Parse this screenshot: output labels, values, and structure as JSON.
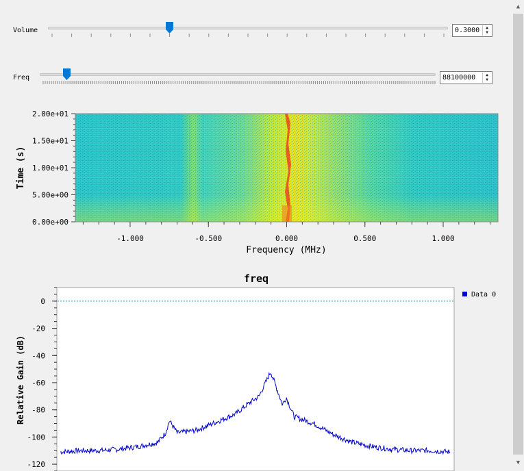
{
  "controls": {
    "volume": {
      "label": "Volume",
      "value_text": "0.3000",
      "position": 0.3
    },
    "freq": {
      "label": "Freq",
      "value_text": "88100000",
      "position": 0.06
    }
  },
  "waterfall": {
    "ylabel": "Time (s)",
    "xlabel": "Frequency (MHz)",
    "yticks": [
      "2.00e+01",
      "1.50e+01",
      "1.00e+01",
      "5.00e+00",
      "0.00e+00"
    ],
    "xticks": [
      "-1.000",
      "-0.500",
      "0.000",
      "0.500",
      "1.000"
    ]
  },
  "spectrum": {
    "title": "freq",
    "legend": "Data 0",
    "ylabel": "Relative Gain (dB)",
    "yticks": [
      "0",
      "-20",
      "-40",
      "-60",
      "-80",
      "-100",
      "-120"
    ]
  },
  "colors": {
    "curve": "#0000c8",
    "reference_line": "#00aaaa",
    "handle": "#0078d7"
  },
  "chart_data": [
    {
      "type": "heatmap",
      "title": "",
      "xlabel": "Frequency (MHz)",
      "ylabel": "Time (s)",
      "xlim": [
        -1.35,
        1.35
      ],
      "ylim": [
        0,
        20
      ],
      "description_free": true
    },
    {
      "type": "line",
      "title": "freq",
      "ylabel": "Relative Gain (dB)",
      "ylim": [
        -125,
        10
      ],
      "reference_line": 0,
      "series": [
        {
          "name": "Data 0",
          "x": [
            0,
            0.05,
            0.1,
            0.15,
            0.2,
            0.25,
            0.27,
            0.28,
            0.3,
            0.35,
            0.4,
            0.45,
            0.48,
            0.5,
            0.51,
            0.52,
            0.54,
            0.56,
            0.57,
            0.58,
            0.6,
            0.65,
            0.7,
            0.75,
            0.8,
            0.85,
            0.9,
            0.95,
            1.0
          ],
          "values": [
            -111,
            -110,
            -110,
            -109,
            -107,
            -104,
            -97,
            -88,
            -97,
            -95,
            -89,
            -83,
            -76,
            -72,
            -70,
            -64,
            -52,
            -68,
            -76,
            -71,
            -85,
            -90,
            -98,
            -104,
            -107,
            -109,
            -110,
            -110,
            -111
          ]
        }
      ]
    }
  ]
}
